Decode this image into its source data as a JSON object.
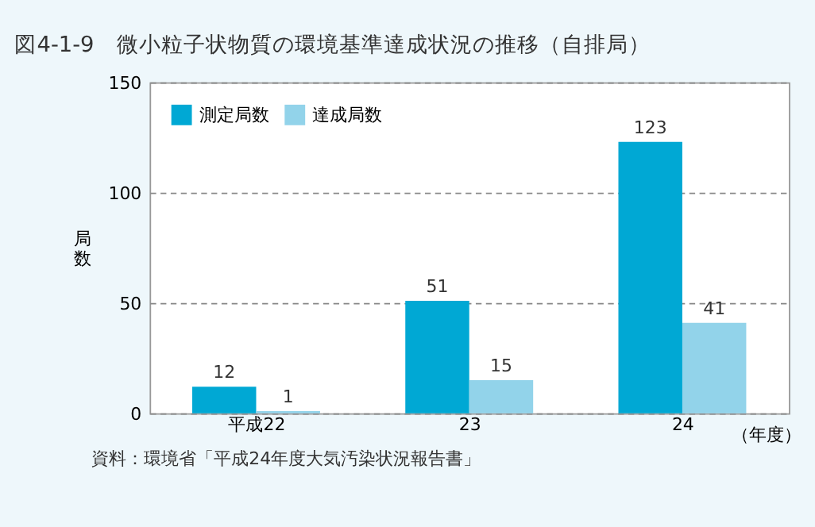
{
  "chart_data": {
    "type": "bar",
    "title": "図4-1-9　微小粒子状物質の環境基準達成状況の推移（自排局）",
    "categories": [
      "平成22",
      "23",
      "24"
    ],
    "series": [
      {
        "name": "測定局数",
        "color": "#00a8d4",
        "values": [
          12,
          51,
          123
        ]
      },
      {
        "name": "達成局数",
        "color": "#92d3ea",
        "values": [
          1,
          15,
          41
        ]
      }
    ],
    "xlabel": "（年度）",
    "ylabel": "局数",
    "ylim": [
      0,
      150
    ],
    "yticks": [
      0,
      50,
      100,
      150
    ],
    "grid": "y",
    "line_style": "dashed",
    "legend": "top left",
    "data_labels": true,
    "annotations": [
      "資料：環境省「平成24年度大気汚染状況報告書」"
    ]
  }
}
